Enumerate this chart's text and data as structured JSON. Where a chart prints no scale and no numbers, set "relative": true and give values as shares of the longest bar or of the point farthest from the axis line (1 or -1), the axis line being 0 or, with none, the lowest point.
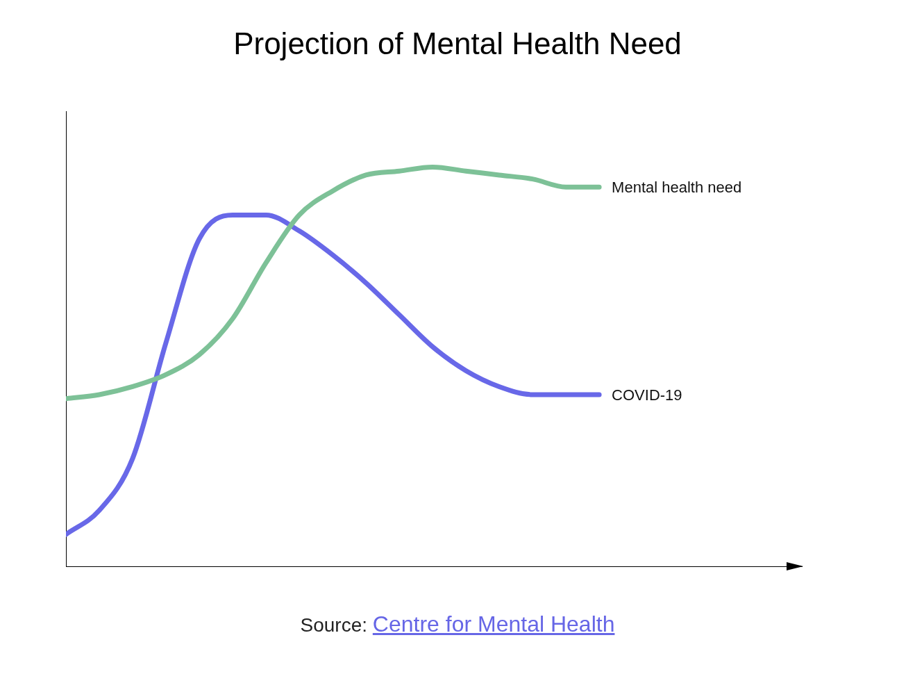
{
  "chart_data": {
    "type": "line",
    "title": "Projection of Mental Health Need",
    "relative": true,
    "categories": [
      null,
      null,
      null,
      null,
      null,
      null,
      null,
      null,
      null,
      null,
      null,
      null,
      null,
      null,
      null,
      null,
      null
    ],
    "series": [
      {
        "name": "Mental health need",
        "color": "#7dc197",
        "values": [
          0.42,
          0.43,
          0.45,
          0.48,
          0.53,
          0.62,
          0.76,
          0.88,
          0.94,
          0.98,
          0.99,
          1.0,
          0.99,
          0.98,
          0.97,
          0.95,
          0.95
        ]
      },
      {
        "name": "COVID-19",
        "color": "#6868e8",
        "values": [
          0.08,
          0.14,
          0.27,
          0.56,
          0.82,
          0.88,
          0.88,
          0.84,
          0.78,
          0.71,
          0.63,
          0.55,
          0.49,
          0.45,
          0.43,
          0.43,
          0.43
        ]
      }
    ],
    "annotations": [
      "Source: Centre for Mental Health"
    ]
  }
}
